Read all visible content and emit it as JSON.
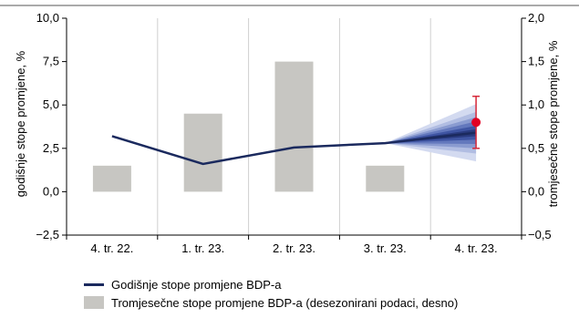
{
  "chart_data": {
    "type": "bar+line",
    "categories": [
      "4. tr. 22.",
      "1. tr. 23.",
      "2. tr. 23.",
      "3. tr. 23.",
      "4. tr. 23."
    ],
    "left_axis": {
      "label": "godišnje stope promjene, %",
      "ylim": [
        -2.5,
        10.0
      ],
      "ticks": [
        "−2,5",
        "0,0",
        "2,5",
        "5,0",
        "7,5",
        "10,0"
      ],
      "tick_values": [
        -2.5,
        0,
        2.5,
        5.0,
        7.5,
        10.0
      ]
    },
    "right_axis": {
      "label": "tromjesečne stope promjene, %",
      "ylim": [
        -0.5,
        2.0
      ],
      "ticks": [
        "−0,5",
        "0,0",
        "0,5",
        "1,0",
        "1,5",
        "2,0"
      ],
      "tick_values": [
        -0.5,
        0,
        0.5,
        1.0,
        1.5,
        2.0
      ]
    },
    "series": [
      {
        "name": "Godišnje stope promjene BDP-a",
        "type": "line",
        "axis": "left",
        "color": "#1b2a5e",
        "values": [
          3.2,
          1.6,
          2.55,
          2.8,
          3.4
        ]
      },
      {
        "name": "Tromjesečne stope promjene BDP-a (desezonirani podaci, desno)",
        "type": "bar",
        "axis": "right",
        "color": "#c7c6c2",
        "values": [
          0.3,
          0.9,
          1.5,
          0.3,
          null
        ]
      }
    ],
    "fan": {
      "anchor_category": "3. tr. 23.",
      "anchor_value": 2.8,
      "end_center": 3.4,
      "bands_halfwidth": [
        0.2,
        0.4,
        0.65,
        0.9,
        1.2,
        1.65
      ],
      "colors": [
        "#2a3b7f",
        "#3f55a3",
        "#6378bd",
        "#8a9bd0",
        "#b1bde2",
        "#d3daf0"
      ]
    },
    "point": {
      "category": "4. tr. 23.",
      "value": 4.0,
      "err_low": 2.5,
      "err_high": 5.5,
      "color": "#e30022",
      "err_color": "#d62839"
    },
    "grid": "vertical",
    "legend_placement": "bottom"
  }
}
